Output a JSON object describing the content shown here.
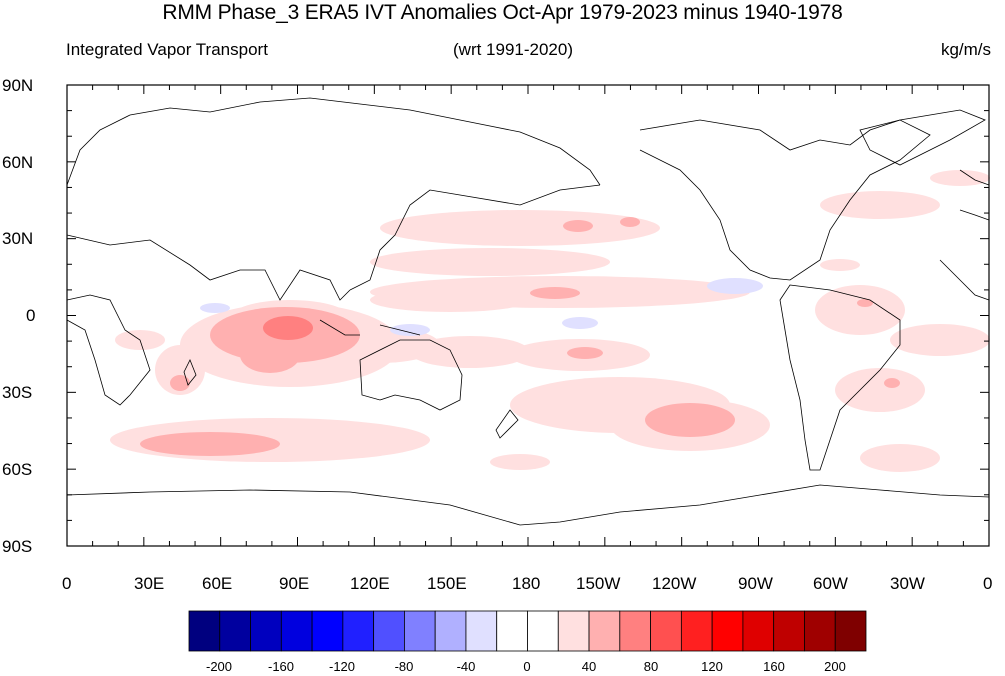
{
  "title": "RMM Phase_3 ERA5 IVT Anomalies Oct-Apr 1979-2023 minus 1940-1978",
  "subtitle_left": "Integrated Vapor Transport",
  "subtitle_center": "(wrt 1991-2020)",
  "subtitle_right": "kg/m/s",
  "lat_labels": [
    "90N",
    "60N",
    "30N",
    "0",
    "30S",
    "60S",
    "90S"
  ],
  "lon_labels": [
    "0",
    "30E",
    "60E",
    "90E",
    "120E",
    "150E",
    "180",
    "150W",
    "120W",
    "90W",
    "60W",
    "30W",
    "0"
  ],
  "colorbar": {
    "colors": [
      "#00007f",
      "#00009f",
      "#0000bf",
      "#0000df",
      "#0000ff",
      "#2020ff",
      "#5050ff",
      "#8080ff",
      "#b0b0ff",
      "#e0e0ff",
      "#ffffff",
      "#ffffff",
      "#ffe0e0",
      "#ffb0b0",
      "#ff8080",
      "#ff5050",
      "#ff2020",
      "#ff0000",
      "#df0000",
      "#bf0000",
      "#9f0000",
      "#7f0000"
    ],
    "tick_labels": [
      "-200",
      "-160",
      "-120",
      "-80",
      "-40",
      "0",
      "40",
      "80",
      "120",
      "160",
      "200"
    ]
  },
  "colors": {
    "light_pink": "#ffe0e0",
    "pink": "#ffb0b0",
    "salmon": "#ff8080",
    "light_blue": "#e0e0ff"
  }
}
